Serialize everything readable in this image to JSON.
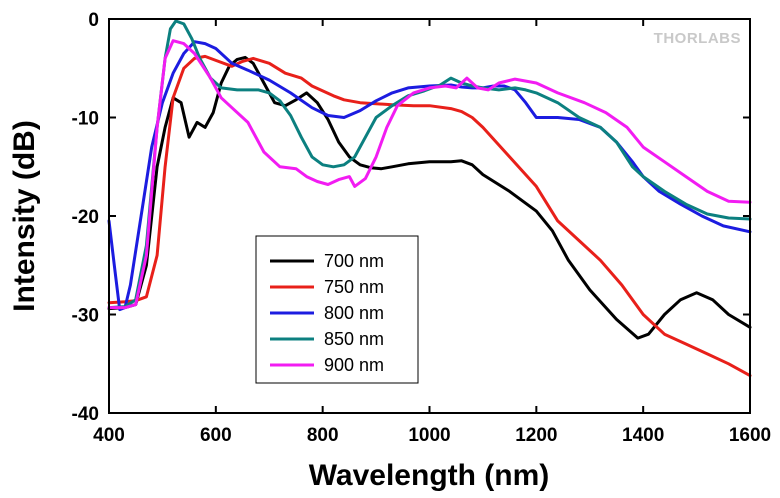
{
  "brand": "THORLABS",
  "chart_data": {
    "type": "line",
    "xlabel": "Wavelength (nm)",
    "ylabel": "Intensity (dB)",
    "xlim": [
      400,
      1600
    ],
    "ylim": [
      -40,
      0
    ],
    "xticks": [
      400,
      600,
      800,
      1000,
      1200,
      1400,
      1600
    ],
    "yticks": [
      0,
      -10,
      -20,
      -30,
      -40
    ],
    "grid": false,
    "legend_position": "lower-left-center",
    "series": [
      {
        "name": "700 nm",
        "color": "#000000",
        "points": [
          [
            400,
            -29.4
          ],
          [
            430,
            -29.3
          ],
          [
            450,
            -29
          ],
          [
            470,
            -25
          ],
          [
            490,
            -15
          ],
          [
            505,
            -11
          ],
          [
            520,
            -8
          ],
          [
            535,
            -8.5
          ],
          [
            550,
            -12
          ],
          [
            565,
            -10.5
          ],
          [
            580,
            -11
          ],
          [
            595,
            -9.5
          ],
          [
            610,
            -6.5
          ],
          [
            625,
            -4.8
          ],
          [
            640,
            -4.1
          ],
          [
            655,
            -3.9
          ],
          [
            670,
            -4.5
          ],
          [
            690,
            -6.5
          ],
          [
            710,
            -8.5
          ],
          [
            730,
            -8.8
          ],
          [
            750,
            -8.2
          ],
          [
            770,
            -7.5
          ],
          [
            790,
            -8.5
          ],
          [
            810,
            -10.2
          ],
          [
            830,
            -12.5
          ],
          [
            850,
            -14
          ],
          [
            870,
            -14.8
          ],
          [
            890,
            -15.1
          ],
          [
            910,
            -15.2
          ],
          [
            930,
            -15
          ],
          [
            960,
            -14.7
          ],
          [
            1000,
            -14.5
          ],
          [
            1040,
            -14.5
          ],
          [
            1060,
            -14.4
          ],
          [
            1080,
            -14.8
          ],
          [
            1100,
            -15.8
          ],
          [
            1150,
            -17.5
          ],
          [
            1200,
            -19.5
          ],
          [
            1230,
            -21.5
          ],
          [
            1260,
            -24.5
          ],
          [
            1300,
            -27.5
          ],
          [
            1350,
            -30.5
          ],
          [
            1390,
            -32.4
          ],
          [
            1410,
            -32
          ],
          [
            1440,
            -30
          ],
          [
            1470,
            -28.5
          ],
          [
            1500,
            -27.8
          ],
          [
            1530,
            -28.5
          ],
          [
            1560,
            -30
          ],
          [
            1600,
            -31.3
          ]
        ]
      },
      {
        "name": "750 nm",
        "color": "#e8201a",
        "points": [
          [
            400,
            -28.8
          ],
          [
            430,
            -28.7
          ],
          [
            450,
            -28.6
          ],
          [
            470,
            -28.2
          ],
          [
            490,
            -24
          ],
          [
            505,
            -15
          ],
          [
            520,
            -8
          ],
          [
            540,
            -5
          ],
          [
            560,
            -4
          ],
          [
            580,
            -3.8
          ],
          [
            600,
            -4.2
          ],
          [
            630,
            -4.8
          ],
          [
            650,
            -4.3
          ],
          [
            670,
            -4
          ],
          [
            700,
            -4.5
          ],
          [
            730,
            -5.5
          ],
          [
            760,
            -6
          ],
          [
            780,
            -6.8
          ],
          [
            800,
            -7.3
          ],
          [
            820,
            -7.8
          ],
          [
            840,
            -8.2
          ],
          [
            870,
            -8.5
          ],
          [
            900,
            -8.6
          ],
          [
            930,
            -8.7
          ],
          [
            970,
            -8.8
          ],
          [
            1000,
            -8.8
          ],
          [
            1040,
            -9.1
          ],
          [
            1060,
            -9.4
          ],
          [
            1080,
            -10
          ],
          [
            1100,
            -11
          ],
          [
            1150,
            -14
          ],
          [
            1200,
            -17
          ],
          [
            1240,
            -20.5
          ],
          [
            1280,
            -22.5
          ],
          [
            1320,
            -24.5
          ],
          [
            1360,
            -27
          ],
          [
            1400,
            -30
          ],
          [
            1440,
            -32
          ],
          [
            1480,
            -33
          ],
          [
            1520,
            -34
          ],
          [
            1560,
            -35
          ],
          [
            1600,
            -36.2
          ]
        ]
      },
      {
        "name": "800 nm",
        "color": "#1c1ce0",
        "points": [
          [
            400,
            -20.5
          ],
          [
            410,
            -25
          ],
          [
            420,
            -29.5
          ],
          [
            430,
            -29.3
          ],
          [
            440,
            -27
          ],
          [
            460,
            -20
          ],
          [
            480,
            -13
          ],
          [
            500,
            -8.5
          ],
          [
            520,
            -5.5
          ],
          [
            540,
            -3.5
          ],
          [
            560,
            -2.3
          ],
          [
            580,
            -2.5
          ],
          [
            600,
            -3
          ],
          [
            630,
            -4.5
          ],
          [
            660,
            -5.2
          ],
          [
            700,
            -6.2
          ],
          [
            740,
            -7.5
          ],
          [
            780,
            -9
          ],
          [
            810,
            -9.8
          ],
          [
            840,
            -10
          ],
          [
            870,
            -9.3
          ],
          [
            900,
            -8.3
          ],
          [
            930,
            -7.5
          ],
          [
            960,
            -7
          ],
          [
            1000,
            -6.8
          ],
          [
            1040,
            -6.7
          ],
          [
            1060,
            -6.9
          ],
          [
            1080,
            -7
          ],
          [
            1100,
            -7
          ],
          [
            1120,
            -6.8
          ],
          [
            1140,
            -6.8
          ],
          [
            1160,
            -7.2
          ],
          [
            1180,
            -8.5
          ],
          [
            1200,
            -10
          ],
          [
            1240,
            -10
          ],
          [
            1280,
            -10.2
          ],
          [
            1320,
            -11
          ],
          [
            1350,
            -12.5
          ],
          [
            1380,
            -14.5
          ],
          [
            1400,
            -16
          ],
          [
            1430,
            -17.5
          ],
          [
            1470,
            -18.8
          ],
          [
            1510,
            -20
          ],
          [
            1550,
            -21
          ],
          [
            1600,
            -21.6
          ]
        ]
      },
      {
        "name": "850 nm",
        "color": "#0c8080",
        "points": [
          [
            400,
            -29.3
          ],
          [
            430,
            -29.2
          ],
          [
            450,
            -28.5
          ],
          [
            470,
            -23
          ],
          [
            490,
            -11
          ],
          [
            505,
            -4
          ],
          [
            515,
            -1
          ],
          [
            525,
            -0.2
          ],
          [
            540,
            -0.5
          ],
          [
            555,
            -2
          ],
          [
            570,
            -4
          ],
          [
            590,
            -6
          ],
          [
            610,
            -7
          ],
          [
            640,
            -7.2
          ],
          [
            680,
            -7.2
          ],
          [
            700,
            -7.5
          ],
          [
            720,
            -8.3
          ],
          [
            740,
            -9.8
          ],
          [
            760,
            -12
          ],
          [
            780,
            -14
          ],
          [
            800,
            -14.8
          ],
          [
            820,
            -15
          ],
          [
            840,
            -14.8
          ],
          [
            860,
            -14
          ],
          [
            880,
            -12
          ],
          [
            900,
            -10
          ],
          [
            930,
            -8.8
          ],
          [
            960,
            -7.8
          ],
          [
            990,
            -7.3
          ],
          [
            1020,
            -6.7
          ],
          [
            1040,
            -6
          ],
          [
            1060,
            -6.5
          ],
          [
            1080,
            -6.8
          ],
          [
            1100,
            -7
          ],
          [
            1130,
            -7.2
          ],
          [
            1160,
            -7
          ],
          [
            1180,
            -7.2
          ],
          [
            1200,
            -7.5
          ],
          [
            1240,
            -8.5
          ],
          [
            1280,
            -10
          ],
          [
            1320,
            -11
          ],
          [
            1350,
            -12.5
          ],
          [
            1380,
            -15
          ],
          [
            1400,
            -16
          ],
          [
            1440,
            -17.5
          ],
          [
            1480,
            -18.8
          ],
          [
            1520,
            -19.8
          ],
          [
            1560,
            -20.2
          ],
          [
            1600,
            -20.3
          ]
        ]
      },
      {
        "name": "900 nm",
        "color": "#f21cf2",
        "points": [
          [
            400,
            -29.3
          ],
          [
            430,
            -29.3
          ],
          [
            450,
            -29
          ],
          [
            470,
            -24
          ],
          [
            490,
            -11
          ],
          [
            505,
            -4
          ],
          [
            520,
            -2.2
          ],
          [
            540,
            -2.5
          ],
          [
            560,
            -3.5
          ],
          [
            590,
            -6
          ],
          [
            610,
            -8
          ],
          [
            630,
            -9
          ],
          [
            660,
            -10.5
          ],
          [
            690,
            -13.5
          ],
          [
            720,
            -15
          ],
          [
            750,
            -15.2
          ],
          [
            770,
            -16
          ],
          [
            790,
            -16.5
          ],
          [
            810,
            -16.8
          ],
          [
            830,
            -16.3
          ],
          [
            850,
            -16
          ],
          [
            860,
            -17
          ],
          [
            880,
            -16.2
          ],
          [
            900,
            -14
          ],
          [
            920,
            -11
          ],
          [
            940,
            -8.8
          ],
          [
            970,
            -7.5
          ],
          [
            1000,
            -7
          ],
          [
            1030,
            -6.8
          ],
          [
            1050,
            -7
          ],
          [
            1070,
            -6
          ],
          [
            1090,
            -7
          ],
          [
            1110,
            -7.2
          ],
          [
            1130,
            -6.5
          ],
          [
            1160,
            -6.1
          ],
          [
            1200,
            -6.5
          ],
          [
            1240,
            -7.5
          ],
          [
            1290,
            -8.5
          ],
          [
            1330,
            -9.5
          ],
          [
            1370,
            -11
          ],
          [
            1400,
            -13
          ],
          [
            1440,
            -14.5
          ],
          [
            1480,
            -16
          ],
          [
            1520,
            -17.5
          ],
          [
            1560,
            -18.5
          ],
          [
            1600,
            -18.6
          ]
        ]
      }
    ]
  }
}
